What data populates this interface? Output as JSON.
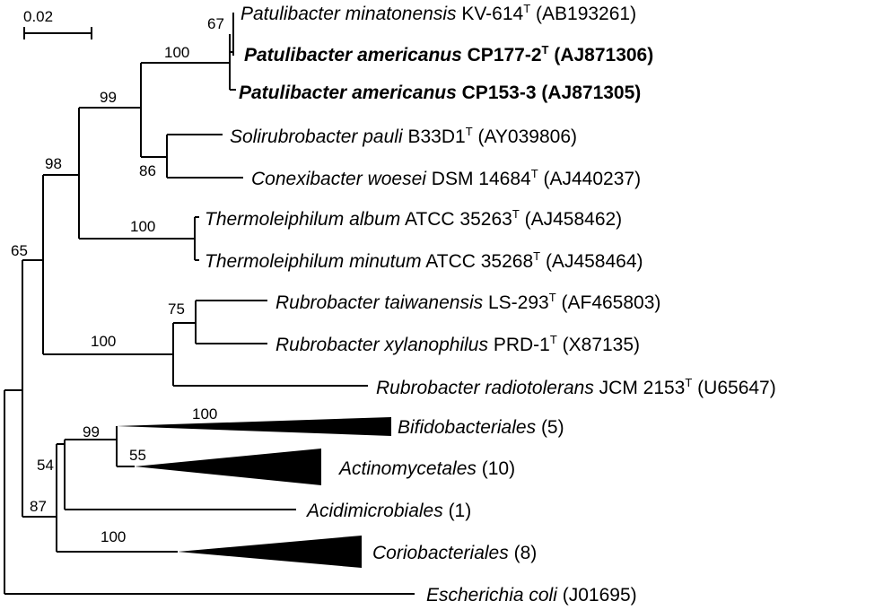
{
  "scale_bar": {
    "label": "0.02"
  },
  "leaves": [
    {
      "id": "leaf-patulibacter-minatonensis",
      "genus": "Patulibacter",
      "species": "minatonensis",
      "strain": "KV-614",
      "type_strain": true,
      "accession": "(AB193261)",
      "bold": false
    },
    {
      "id": "leaf-patulibacter-americanus-cp177-2",
      "genus": "Patulibacter",
      "species": "americanus",
      "strain": "CP177-2",
      "type_strain": true,
      "accession": "(AJ871306)",
      "bold": true
    },
    {
      "id": "leaf-patulibacter-americanus-cp153-3",
      "genus": "Patulibacter",
      "species": "americanus",
      "strain": "CP153-3",
      "type_strain": false,
      "accession": "(AJ871305)",
      "bold": true
    },
    {
      "id": "leaf-solirubrobacter-pauli",
      "genus": "Solirubrobacter",
      "species": "pauli",
      "strain": "B33D1",
      "type_strain": true,
      "accession": "(AY039806)",
      "bold": false
    },
    {
      "id": "leaf-conexibacter-woesei",
      "genus": "Conexibacter",
      "species": "woesei",
      "strain": "DSM 14684",
      "type_strain": true,
      "accession": "(AJ440237)",
      "bold": false
    },
    {
      "id": "leaf-thermoleiphilum-album",
      "genus": "Thermoleiphilum",
      "species": "album",
      "strain": "ATCC 35263",
      "type_strain": true,
      "accession": "(AJ458462)",
      "bold": false
    },
    {
      "id": "leaf-thermoleiphilum-minutum",
      "genus": "Thermoleiphilum",
      "species": "minutum",
      "strain": "ATCC 35268",
      "type_strain": true,
      "accession": "(AJ458464)",
      "bold": false
    },
    {
      "id": "leaf-rubrobacter-taiwanensis",
      "genus": "Rubrobacter",
      "species": "taiwanensis",
      "strain": "LS-293",
      "type_strain": true,
      "accession": "(AF465803)",
      "bold": false
    },
    {
      "id": "leaf-rubrobacter-xylanophilus",
      "genus": "Rubrobacter",
      "species": "xylanophilus",
      "strain": "PRD-1",
      "type_strain": true,
      "accession": "(X87135)",
      "bold": false
    },
    {
      "id": "leaf-rubrobacter-radiotolerans",
      "genus": "Rubrobacter",
      "species": "radiotolerans",
      "strain": "JCM 2153",
      "type_strain": true,
      "accession": "(U65647)",
      "bold": false
    },
    {
      "id": "leaf-bifidobacteriales",
      "name": "Bifidobacteriales",
      "suffix": "(5)"
    },
    {
      "id": "leaf-actinomycetales",
      "name": "Actinomycetales",
      "suffix": "(10)"
    },
    {
      "id": "leaf-acidimicrobiales",
      "name": "Acidimicrobiales",
      "suffix": "(1)"
    },
    {
      "id": "leaf-coriobacteriales",
      "name": "Coriobacteriales",
      "suffix": "(8)"
    },
    {
      "id": "leaf-escherichia-coli",
      "name": "Escherichia coli",
      "suffix": "(J01695)"
    }
  ],
  "bootstrap": {
    "patulibacter_minatonensis": "67",
    "patulibacter": "100",
    "solirubrobacter_clade": "99",
    "solirubrobacter_conexibacter": "86",
    "patulibacter_thermoleiphilum": "98",
    "thermoleiphilum": "100",
    "rubrobacter_clade_outer": "65",
    "rubrobacter_clade": "100",
    "rubrobacter_taiwanensis_xylanophilus": "75",
    "bifido_actino": "99",
    "bifidobacteriales": "100",
    "actinomycetales": "55",
    "acidimicrobiales_group": "54",
    "outgroup_clade": "87",
    "coriobacteriales": "100"
  }
}
